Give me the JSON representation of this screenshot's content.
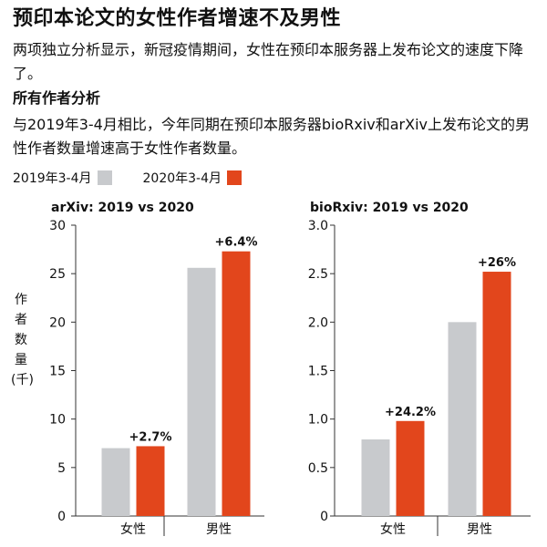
{
  "header": {
    "title": "预印本论文的女性作者增速不及男性",
    "subtitle": "两项独立分析显示，新冠疫情期间，女性在预印本服务器上发布论文的速度下降了。",
    "section_title": "所有作者分析",
    "description": "与2019年3-4月相比，今年同期在预印本服务器bioRxiv和arXiv上发布论文的男性作者数量增速高于女性作者数量。"
  },
  "legend": {
    "items": [
      {
        "label": "2019年3-4月",
        "color": "#c8cacd"
      },
      {
        "label": "2020年3-4月",
        "color": "#e2461c"
      }
    ]
  },
  "y_axis_label_chars": [
    "作",
    "者",
    "数",
    "量",
    "(千)"
  ],
  "chart_data": [
    {
      "type": "bar",
      "title": "arXiv: 2019 vs 2020",
      "categories": [
        "女性",
        "男性"
      ],
      "series": [
        {
          "name": "2019年3-4月",
          "values": [
            7.0,
            25.6
          ]
        },
        {
          "name": "2020年3-4月",
          "values": [
            7.2,
            27.3
          ]
        }
      ],
      "annotations": [
        "+2.7%",
        "+6.4%"
      ],
      "ylabel": "作者数量(千)",
      "ylim": [
        0,
        30
      ],
      "yticks": [
        "0",
        "5",
        "10",
        "15",
        "20",
        "25",
        "30"
      ],
      "grid": false
    },
    {
      "type": "bar",
      "title": "bioRxiv: 2019 vs 2020",
      "categories": [
        "女性",
        "男性"
      ],
      "series": [
        {
          "name": "2019年3-4月",
          "values": [
            0.79,
            2.0
          ]
        },
        {
          "name": "2020年3-4月",
          "values": [
            0.98,
            2.52
          ]
        }
      ],
      "annotations": [
        "+24.2%",
        "+26%"
      ],
      "ylabel": "作者数量(千)",
      "ylim": [
        0,
        3
      ],
      "yticks": [
        "0",
        "0.5",
        "1.0",
        "1.5",
        "2.0",
        "2.5",
        "3.0"
      ],
      "grid": false
    }
  ]
}
